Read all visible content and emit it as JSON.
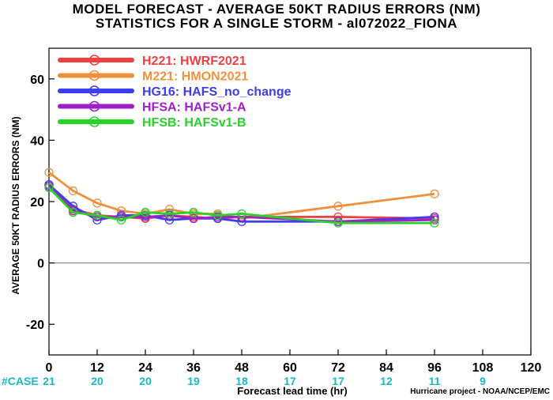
{
  "header": {
    "title": "MODEL FORECAST - AVERAGE 50KT RADIUS ERRORS (NM)",
    "subtitle": "STATISTICS FOR A SINGLE STORM - al072022_FIONA"
  },
  "footer": {
    "source": "Hurricane project - NOAA/NCEP/EMC"
  },
  "chart_data": {
    "type": "line",
    "xlabel": "Forecast lead time (hr)",
    "ylabel": "AVERAGE 50KT RADIUS ERRORS (NM)",
    "xlim": [
      0,
      120
    ],
    "ylim": [
      -30,
      70
    ],
    "xticks": [
      0,
      12,
      24,
      36,
      48,
      60,
      72,
      84,
      96,
      108,
      120
    ],
    "yticks": [
      -20,
      0,
      20,
      40,
      60
    ],
    "zero_line": true,
    "grid": false,
    "legend_position": "top-left",
    "case_label": "#CASE",
    "case_counts": [
      {
        "x": 0,
        "n": "21"
      },
      {
        "x": 12,
        "n": "20"
      },
      {
        "x": 24,
        "n": "20"
      },
      {
        "x": 36,
        "n": "19"
      },
      {
        "x": 48,
        "n": "18"
      },
      {
        "x": 60,
        "n": "17"
      },
      {
        "x": 72,
        "n": "17"
      },
      {
        "x": 84,
        "n": "12"
      },
      {
        "x": 96,
        "n": "11"
      },
      {
        "x": 108,
        "n": "9"
      }
    ],
    "colors": {
      "case_text": "#18b8c8",
      "zero_line": "#888888"
    },
    "series": [
      {
        "code": "H221",
        "name": "HWRF2021",
        "color": "#f04040",
        "points": [
          [
            0,
            25.5
          ],
          [
            6,
            17.5
          ],
          [
            12,
            15.5
          ],
          [
            18,
            15
          ],
          [
            24,
            14.5
          ],
          [
            30,
            15.5
          ],
          [
            36,
            15
          ],
          [
            42,
            14.5
          ],
          [
            48,
            15
          ],
          [
            72,
            15
          ],
          [
            96,
            14.5
          ]
        ]
      },
      {
        "code": "M221",
        "name": "HMON2021",
        "color": "#f0903c",
        "points": [
          [
            0,
            29.5
          ],
          [
            6,
            23.5
          ],
          [
            12,
            19.5
          ],
          [
            18,
            17
          ],
          [
            24,
            16
          ],
          [
            30,
            17.5
          ],
          [
            36,
            16
          ],
          [
            42,
            16
          ],
          [
            48,
            14.5
          ],
          [
            72,
            18.5
          ],
          [
            96,
            22.5
          ]
        ]
      },
      {
        "code": "HG16",
        "name": "HAFS_no_change",
        "color": "#3c3cf0",
        "points": [
          [
            0,
            25.5
          ],
          [
            6,
            18.5
          ],
          [
            12,
            14
          ],
          [
            18,
            15.5
          ],
          [
            24,
            15.5
          ],
          [
            30,
            14
          ],
          [
            36,
            14.5
          ],
          [
            42,
            14.5
          ],
          [
            48,
            13.5
          ],
          [
            72,
            13.5
          ],
          [
            96,
            15
          ]
        ]
      },
      {
        "code": "HFSA",
        "name": "HAFSv1-A",
        "color": "#a020c8",
        "points": [
          [
            0,
            25
          ],
          [
            6,
            17
          ],
          [
            12,
            15
          ],
          [
            18,
            15
          ],
          [
            24,
            15
          ],
          [
            30,
            15.5
          ],
          [
            36,
            14.5
          ],
          [
            42,
            15
          ],
          [
            48,
            15
          ],
          [
            72,
            13.5
          ],
          [
            96,
            14
          ]
        ]
      },
      {
        "code": "HFSB",
        "name": "HAFSv1-B",
        "color": "#28d228",
        "points": [
          [
            0,
            24.5
          ],
          [
            6,
            16.5
          ],
          [
            12,
            15.5
          ],
          [
            18,
            14
          ],
          [
            24,
            16.5
          ],
          [
            30,
            16
          ],
          [
            36,
            16.5
          ],
          [
            42,
            15.5
          ],
          [
            48,
            16
          ],
          [
            72,
            13
          ],
          [
            96,
            13
          ]
        ]
      }
    ]
  }
}
